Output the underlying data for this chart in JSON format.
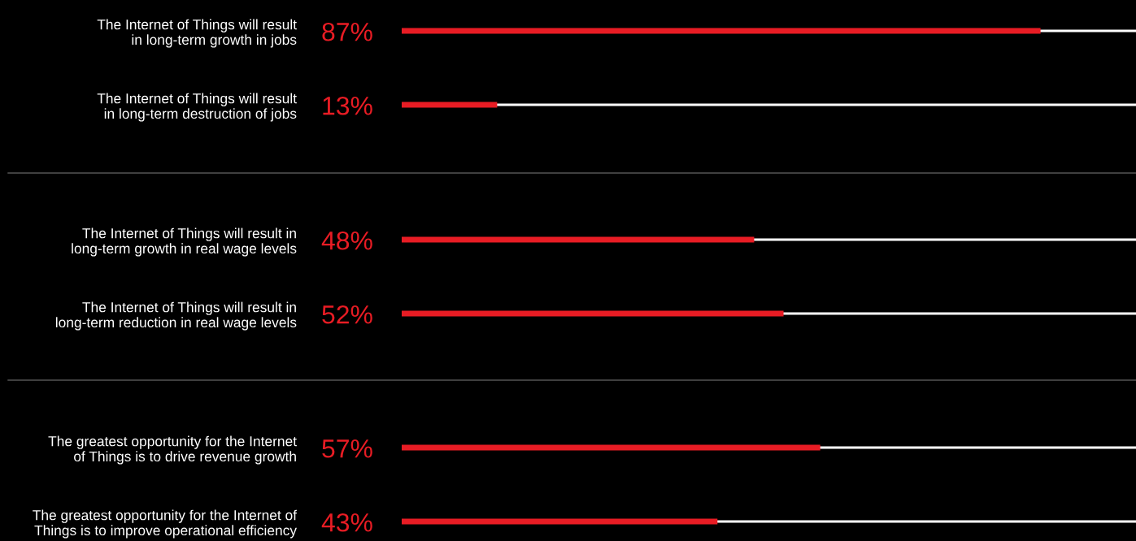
{
  "chart_data": [
    {
      "type": "bar",
      "orientation": "horizontal",
      "categories": [
        "The Internet of Things will result\nin long-term growth in jobs",
        "The Internet of Things will result\nin long-term destruction of jobs"
      ],
      "values": [
        87,
        13
      ],
      "value_labels": [
        "87%",
        "13%"
      ],
      "color": "#e81c24",
      "xlim": [
        0,
        100
      ],
      "tick_labels": "y",
      "grid": "y",
      "legend": false
    },
    {
      "type": "bar",
      "orientation": "horizontal",
      "categories": [
        "The Internet of Things will result in\nlong-term growth in real wage levels",
        "The Internet of Things will result in\nlong-term reduction in real wage levels"
      ],
      "values": [
        48,
        52
      ],
      "value_labels": [
        "48%",
        "52%"
      ],
      "color": "#e81c24",
      "xlim": [
        0,
        100
      ],
      "tick_labels": "y",
      "grid": "y",
      "legend": false
    },
    {
      "type": "bar",
      "orientation": "horizontal",
      "categories": [
        "The greatest opportunity for the Internet\nof Things is to drive revenue growth",
        "The greatest opportunity for the Internet of\nThings is to improve operational efficiency"
      ],
      "values": [
        57,
        43
      ],
      "value_labels": [
        "57%",
        "43%"
      ],
      "color": "#e81c24",
      "xlim": [
        0,
        100
      ],
      "tick_labels": "y",
      "grid": "y",
      "legend": false
    }
  ]
}
